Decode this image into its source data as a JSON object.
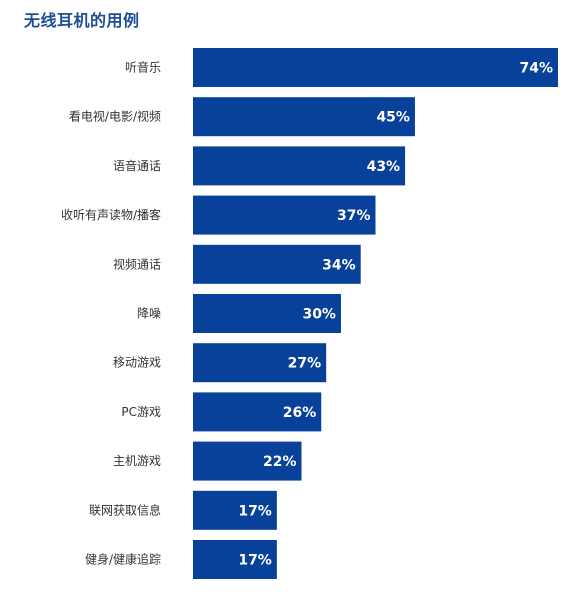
{
  "chart_data": {
    "type": "bar",
    "orientation": "horizontal",
    "title": "无线耳机的用例",
    "categories": [
      "听音乐",
      "看电视/电影/视频",
      "语音通话",
      "收听有声读物/播客",
      "视频通话",
      "降噪",
      "移动游戏",
      "PC游戏",
      "主机游戏",
      "联网获取信息",
      "健身/健康追踪"
    ],
    "values": [
      74,
      45,
      43,
      37,
      34,
      30,
      27,
      26,
      22,
      17,
      17
    ],
    "value_labels": [
      "74%",
      "45%",
      "43%",
      "37%",
      "34%",
      "30%",
      "27%",
      "26%",
      "22%",
      "17%",
      "17%"
    ],
    "unit": "%",
    "xlim": [
      0,
      74
    ],
    "grid": false,
    "legend": "none",
    "colors": {
      "bar": "#08419a",
      "title": "#1f4e96",
      "label": "#333333",
      "value_text": "#ffffff"
    }
  }
}
